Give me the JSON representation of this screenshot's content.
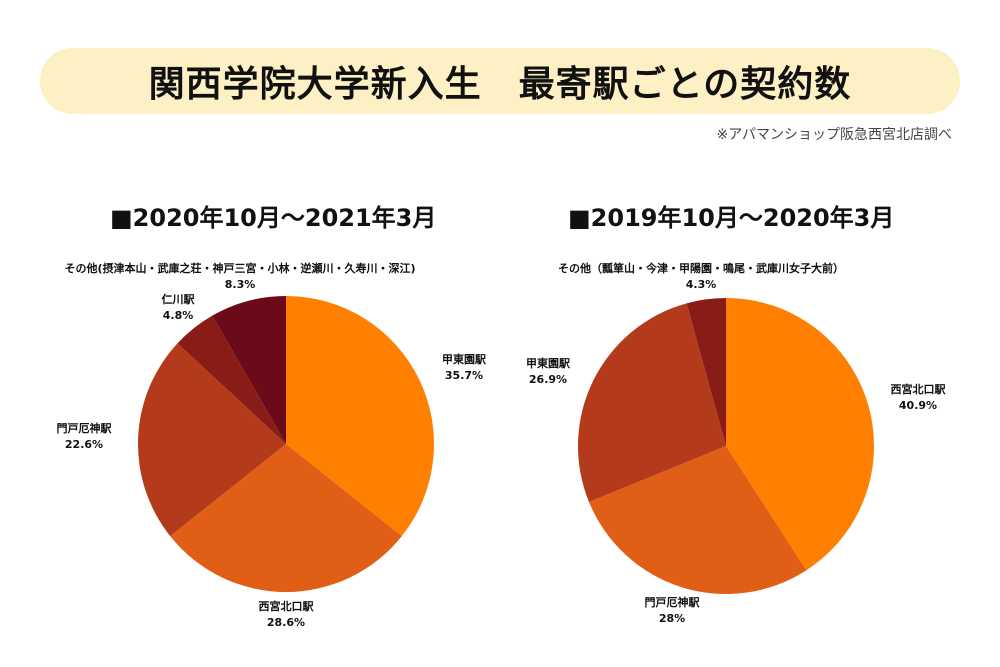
{
  "header": {
    "title": "関西学院大学新入生　最寄駅ごとの契約数",
    "source": "※アパマンショップ阪急西宮北店調べ"
  },
  "chart_data": [
    {
      "type": "pie",
      "title": "■2020年10月〜2021年3月",
      "slices": [
        {
          "label": "甲東園駅",
          "value": 35.7,
          "value_label": "35.7%",
          "color": "#ff7f00"
        },
        {
          "label": "西宮北口駅",
          "value": 28.6,
          "value_label": "28.6%",
          "color": "#e05e16"
        },
        {
          "label": "門戸厄神駅",
          "value": 22.6,
          "value_label": "22.6%",
          "color": "#b33a1a"
        },
        {
          "label": "仁川駅",
          "value": 4.8,
          "value_label": "4.8%",
          "color": "#8a1c17"
        },
        {
          "label": "その他(摂津本山・武庫之荘・神戸三宮・小林・逆瀬川・久寿川・深江)",
          "value": 8.3,
          "value_label": "8.3%",
          "color": "#6b0a18"
        }
      ]
    },
    {
      "type": "pie",
      "title": "■2019年10月〜2020年3月",
      "slices": [
        {
          "label": "西宮北口駅",
          "value": 40.9,
          "value_label": "40.9%",
          "color": "#ff7f00"
        },
        {
          "label": "門戸厄神駅",
          "value": 28,
          "value_label": "28%",
          "color": "#e05e16"
        },
        {
          "label": "甲東園駅",
          "value": 26.9,
          "value_label": "26.9%",
          "color": "#b33a1a"
        },
        {
          "label": "その他（瓢箪山・今津・甲陽園・鳴尾・武庫川女子大前）",
          "value": 4.3,
          "value_label": "4.3%",
          "color": "#8a1c17"
        }
      ]
    }
  ]
}
